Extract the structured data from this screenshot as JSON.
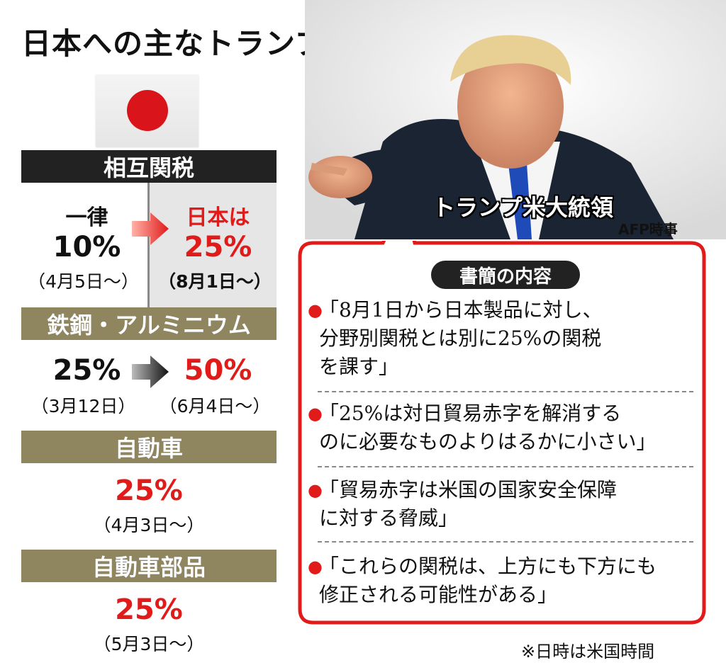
{
  "title": "日本への主なトランプ関税",
  "reciprocal": {
    "header": "相互関税",
    "left_label": "一律",
    "left_rate": "10%",
    "left_date": "（4月5日〜）",
    "right_label": "日本は",
    "right_rate": "25%",
    "right_date": "（8月1日〜）"
  },
  "steel": {
    "header": "鉄鋼・アルミニウム",
    "left_rate": "25%",
    "left_date": "（3月12日）",
    "right_rate": "50%",
    "right_date": "（6月4日〜）"
  },
  "autos": {
    "header": "自動車",
    "rate": "25%",
    "date": "（4月3日〜）"
  },
  "parts": {
    "header": "自動車部品",
    "rate": "25%",
    "date": "（5月3日〜）"
  },
  "photo": {
    "caption": "トランプ米大統領",
    "credit": "AFP時事"
  },
  "letter": {
    "title": "書簡の内容",
    "quotes": [
      [
        "「8月1日から日本製品に対し、",
        "分野別関税とは別に25%の関税",
        "を課す」"
      ],
      [
        "「25%は対日貿易赤字を解消する",
        "のに必要なものよりはるかに小さい」"
      ],
      [
        "「貿易赤字は米国の国家安全保障",
        "に対する脅威」"
      ],
      [
        "「これらの関税は、上方にも下方にも",
        "修正される可能性がある」"
      ]
    ]
  },
  "footnote": "※日時は米国時間",
  "colors": {
    "accent_red": "#e11a1a",
    "band_dark": "#222222",
    "band_olive": "#8f865f"
  }
}
